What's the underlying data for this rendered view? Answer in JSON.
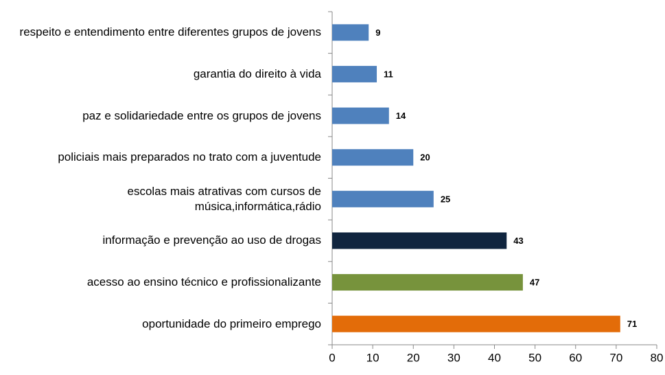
{
  "chart_data": {
    "type": "hbar",
    "categories": [
      "respeito e entendimento entre diferentes grupos de jovens",
      "garantia do direito à vida",
      "paz e solidariedade entre os grupos de jovens",
      "policiais mais preparados no trato com a juventude",
      "escolas mais atrativas com cursos de música,informática,rádio",
      "informação e prevenção ao uso de drogas",
      "acesso ao ensino técnico e profissionalizante",
      "oportunidade do primeiro emprego"
    ],
    "values": [
      9,
      11,
      14,
      20,
      25,
      43,
      47,
      71
    ],
    "colors": [
      "#4f81bd",
      "#4f81bd",
      "#4f81bd",
      "#4f81bd",
      "#4f81bd",
      "#10253f",
      "#77933c",
      "#e36c09"
    ],
    "xlim": [
      0,
      80
    ],
    "xticks": [
      0,
      10,
      20,
      30,
      40,
      50,
      60,
      70,
      80
    ],
    "grid": false
  }
}
